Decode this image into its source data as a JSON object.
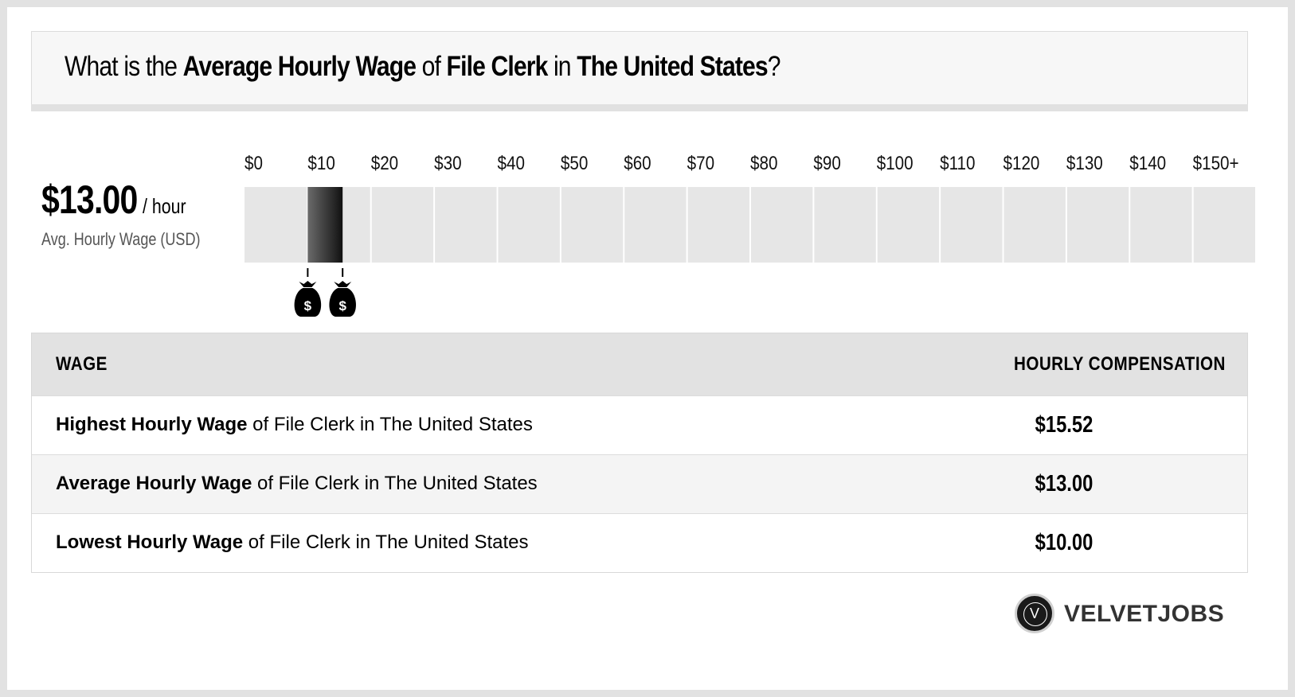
{
  "header": {
    "q1": "What is the ",
    "q2": "Average Hourly Wage",
    "q3": " of ",
    "q4": "File Clerk",
    "q5": " in ",
    "q6": "The United States",
    "q7": "?"
  },
  "summary": {
    "value": "$13.00",
    "unit": "/ hour",
    "caption": "Avg. Hourly Wage (USD)"
  },
  "chart_data": {
    "type": "bar",
    "orientation": "horizontal-range",
    "tick_labels": [
      "$0",
      "$10",
      "$20",
      "$30",
      "$40",
      "$50",
      "$60",
      "$70",
      "$80",
      "$90",
      "$100",
      "$110",
      "$120",
      "$130",
      "$140",
      "$150+"
    ],
    "xlim": [
      0,
      160
    ],
    "range": {
      "low": 10.0,
      "high": 15.52
    },
    "markers": [
      10.0,
      15.52
    ],
    "colors": {
      "track": "#e6e6e6",
      "bar_dark": "#222222",
      "bar_light": "#6a6a6a"
    }
  },
  "table": {
    "col_wage": "WAGE",
    "col_comp": "HOURLY COMPENSATION",
    "rows": [
      {
        "bold": "Highest Hourly Wage",
        "rest": " of File Clerk in The United States",
        "value": "$15.52"
      },
      {
        "bold": "Average Hourly Wage",
        "rest": " of File Clerk in The United States",
        "value": "$13.00"
      },
      {
        "bold": "Lowest Hourly Wage",
        "rest": " of File Clerk in The United States",
        "value": "$10.00"
      }
    ]
  },
  "logo": {
    "mark": "V",
    "name": "VELVETJOBS"
  }
}
